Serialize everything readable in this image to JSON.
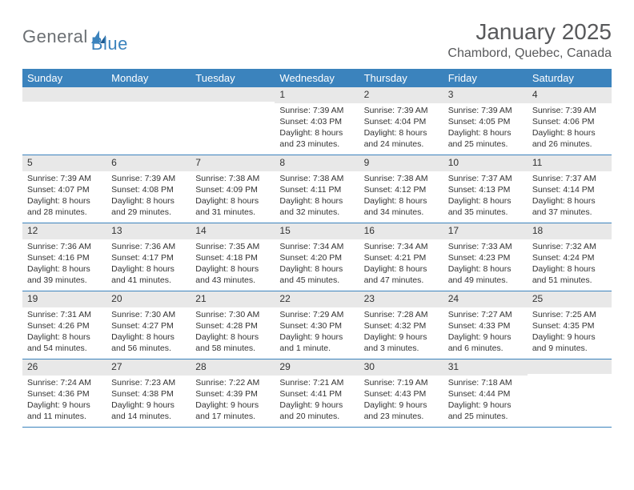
{
  "logo": {
    "text1": "General",
    "text2": "Blue"
  },
  "title": "January 2025",
  "location": "Chambord, Quebec, Canada",
  "header_bg": "#3b83bd",
  "daynum_bg": "#e8e8e8",
  "dayNames": [
    "Sunday",
    "Monday",
    "Tuesday",
    "Wednesday",
    "Thursday",
    "Friday",
    "Saturday"
  ],
  "weeks": [
    [
      null,
      null,
      null,
      {
        "n": "1",
        "sr": "Sunrise: 7:39 AM",
        "ss": "Sunset: 4:03 PM",
        "dl1": "Daylight: 8 hours",
        "dl2": "and 23 minutes."
      },
      {
        "n": "2",
        "sr": "Sunrise: 7:39 AM",
        "ss": "Sunset: 4:04 PM",
        "dl1": "Daylight: 8 hours",
        "dl2": "and 24 minutes."
      },
      {
        "n": "3",
        "sr": "Sunrise: 7:39 AM",
        "ss": "Sunset: 4:05 PM",
        "dl1": "Daylight: 8 hours",
        "dl2": "and 25 minutes."
      },
      {
        "n": "4",
        "sr": "Sunrise: 7:39 AM",
        "ss": "Sunset: 4:06 PM",
        "dl1": "Daylight: 8 hours",
        "dl2": "and 26 minutes."
      }
    ],
    [
      {
        "n": "5",
        "sr": "Sunrise: 7:39 AM",
        "ss": "Sunset: 4:07 PM",
        "dl1": "Daylight: 8 hours",
        "dl2": "and 28 minutes."
      },
      {
        "n": "6",
        "sr": "Sunrise: 7:39 AM",
        "ss": "Sunset: 4:08 PM",
        "dl1": "Daylight: 8 hours",
        "dl2": "and 29 minutes."
      },
      {
        "n": "7",
        "sr": "Sunrise: 7:38 AM",
        "ss": "Sunset: 4:09 PM",
        "dl1": "Daylight: 8 hours",
        "dl2": "and 31 minutes."
      },
      {
        "n": "8",
        "sr": "Sunrise: 7:38 AM",
        "ss": "Sunset: 4:11 PM",
        "dl1": "Daylight: 8 hours",
        "dl2": "and 32 minutes."
      },
      {
        "n": "9",
        "sr": "Sunrise: 7:38 AM",
        "ss": "Sunset: 4:12 PM",
        "dl1": "Daylight: 8 hours",
        "dl2": "and 34 minutes."
      },
      {
        "n": "10",
        "sr": "Sunrise: 7:37 AM",
        "ss": "Sunset: 4:13 PM",
        "dl1": "Daylight: 8 hours",
        "dl2": "and 35 minutes."
      },
      {
        "n": "11",
        "sr": "Sunrise: 7:37 AM",
        "ss": "Sunset: 4:14 PM",
        "dl1": "Daylight: 8 hours",
        "dl2": "and 37 minutes."
      }
    ],
    [
      {
        "n": "12",
        "sr": "Sunrise: 7:36 AM",
        "ss": "Sunset: 4:16 PM",
        "dl1": "Daylight: 8 hours",
        "dl2": "and 39 minutes."
      },
      {
        "n": "13",
        "sr": "Sunrise: 7:36 AM",
        "ss": "Sunset: 4:17 PM",
        "dl1": "Daylight: 8 hours",
        "dl2": "and 41 minutes."
      },
      {
        "n": "14",
        "sr": "Sunrise: 7:35 AM",
        "ss": "Sunset: 4:18 PM",
        "dl1": "Daylight: 8 hours",
        "dl2": "and 43 minutes."
      },
      {
        "n": "15",
        "sr": "Sunrise: 7:34 AM",
        "ss": "Sunset: 4:20 PM",
        "dl1": "Daylight: 8 hours",
        "dl2": "and 45 minutes."
      },
      {
        "n": "16",
        "sr": "Sunrise: 7:34 AM",
        "ss": "Sunset: 4:21 PM",
        "dl1": "Daylight: 8 hours",
        "dl2": "and 47 minutes."
      },
      {
        "n": "17",
        "sr": "Sunrise: 7:33 AM",
        "ss": "Sunset: 4:23 PM",
        "dl1": "Daylight: 8 hours",
        "dl2": "and 49 minutes."
      },
      {
        "n": "18",
        "sr": "Sunrise: 7:32 AM",
        "ss": "Sunset: 4:24 PM",
        "dl1": "Daylight: 8 hours",
        "dl2": "and 51 minutes."
      }
    ],
    [
      {
        "n": "19",
        "sr": "Sunrise: 7:31 AM",
        "ss": "Sunset: 4:26 PM",
        "dl1": "Daylight: 8 hours",
        "dl2": "and 54 minutes."
      },
      {
        "n": "20",
        "sr": "Sunrise: 7:30 AM",
        "ss": "Sunset: 4:27 PM",
        "dl1": "Daylight: 8 hours",
        "dl2": "and 56 minutes."
      },
      {
        "n": "21",
        "sr": "Sunrise: 7:30 AM",
        "ss": "Sunset: 4:28 PM",
        "dl1": "Daylight: 8 hours",
        "dl2": "and 58 minutes."
      },
      {
        "n": "22",
        "sr": "Sunrise: 7:29 AM",
        "ss": "Sunset: 4:30 PM",
        "dl1": "Daylight: 9 hours",
        "dl2": "and 1 minute."
      },
      {
        "n": "23",
        "sr": "Sunrise: 7:28 AM",
        "ss": "Sunset: 4:32 PM",
        "dl1": "Daylight: 9 hours",
        "dl2": "and 3 minutes."
      },
      {
        "n": "24",
        "sr": "Sunrise: 7:27 AM",
        "ss": "Sunset: 4:33 PM",
        "dl1": "Daylight: 9 hours",
        "dl2": "and 6 minutes."
      },
      {
        "n": "25",
        "sr": "Sunrise: 7:25 AM",
        "ss": "Sunset: 4:35 PM",
        "dl1": "Daylight: 9 hours",
        "dl2": "and 9 minutes."
      }
    ],
    [
      {
        "n": "26",
        "sr": "Sunrise: 7:24 AM",
        "ss": "Sunset: 4:36 PM",
        "dl1": "Daylight: 9 hours",
        "dl2": "and 11 minutes."
      },
      {
        "n": "27",
        "sr": "Sunrise: 7:23 AM",
        "ss": "Sunset: 4:38 PM",
        "dl1": "Daylight: 9 hours",
        "dl2": "and 14 minutes."
      },
      {
        "n": "28",
        "sr": "Sunrise: 7:22 AM",
        "ss": "Sunset: 4:39 PM",
        "dl1": "Daylight: 9 hours",
        "dl2": "and 17 minutes."
      },
      {
        "n": "29",
        "sr": "Sunrise: 7:21 AM",
        "ss": "Sunset: 4:41 PM",
        "dl1": "Daylight: 9 hours",
        "dl2": "and 20 minutes."
      },
      {
        "n": "30",
        "sr": "Sunrise: 7:19 AM",
        "ss": "Sunset: 4:43 PM",
        "dl1": "Daylight: 9 hours",
        "dl2": "and 23 minutes."
      },
      {
        "n": "31",
        "sr": "Sunrise: 7:18 AM",
        "ss": "Sunset: 4:44 PM",
        "dl1": "Daylight: 9 hours",
        "dl2": "and 25 minutes."
      },
      null
    ]
  ]
}
